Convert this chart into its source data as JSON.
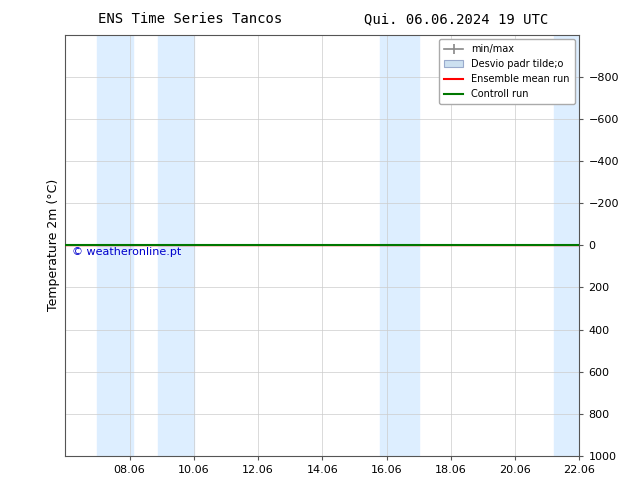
{
  "title_left": "ENS Time Series Tancos",
  "title_right": "Qui. 06.06.2024 19 UTC",
  "ylabel": "Temperature 2m (°C)",
  "ylim": [
    -1000,
    1000
  ],
  "yticks": [
    -800,
    -600,
    -400,
    -200,
    0,
    200,
    400,
    600,
    800,
    1000
  ],
  "xtick_labels": [
    "08.06",
    "10.06",
    "12.06",
    "14.06",
    "16.06",
    "18.06",
    "20.06",
    "22.06"
  ],
  "xtick_positions": [
    2,
    4,
    6,
    8,
    10,
    12,
    14,
    16
  ],
  "xlim": [
    0,
    16
  ],
  "shaded_bands_x": [
    [
      1.0,
      2.1
    ],
    [
      2.9,
      4.0
    ],
    [
      9.8,
      11.0
    ],
    [
      15.2,
      16.0
    ]
  ],
  "line_y": 0,
  "ensemble_mean_color": "#ff0000",
  "control_run_color": "#007700",
  "min_max_color": "#888888",
  "std_color": "#cce0f0",
  "background_color": "#ffffff",
  "plot_bg_color": "#ffffff",
  "watermark": "© weatheronline.pt",
  "watermark_color": "#0000cc",
  "legend_labels": [
    "min/max",
    "Desvio padr tilde;o",
    "Ensemble mean run",
    "Controll run"
  ],
  "title_fontsize": 10,
  "tick_fontsize": 8,
  "ylabel_fontsize": 9,
  "band_color": "#ddeeff",
  "band_alpha": 1.0,
  "watermark_fontsize": 8
}
